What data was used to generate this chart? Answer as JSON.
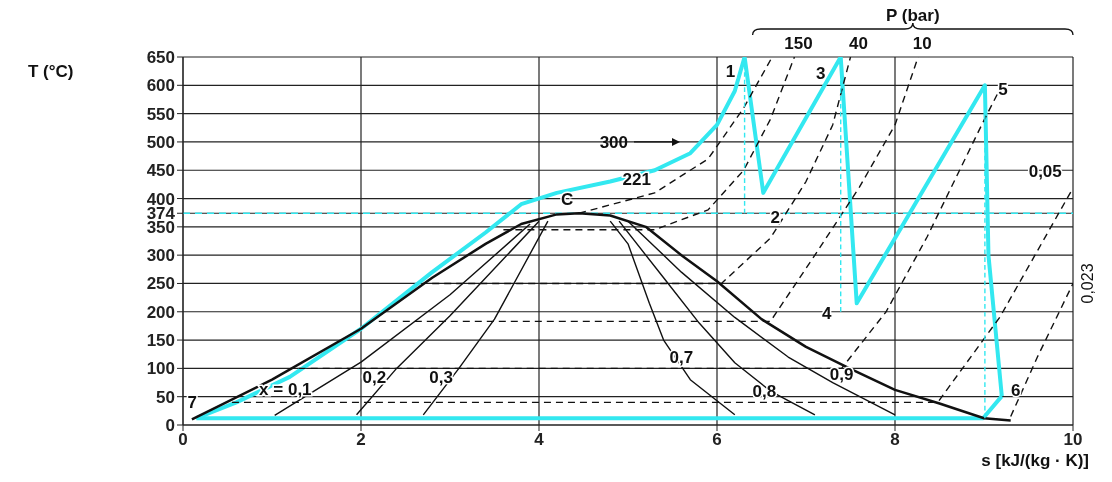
{
  "chart_data": {
    "type": "line",
    "xlabel": "s [kJ/(kg · K)]",
    "ylabel": "T (°C)",
    "xlim": [
      0,
      10
    ],
    "ylim": [
      0,
      650
    ],
    "xticks": [
      0,
      2,
      4,
      6,
      8,
      10
    ],
    "yticks": [
      0,
      50,
      100,
      150,
      200,
      250,
      300,
      350,
      374,
      400,
      450,
      500,
      550,
      600,
      650
    ],
    "grid": true,
    "marker": "none",
    "legend": false,
    "ref_lines": [
      {
        "axis": "y",
        "value": 374,
        "color": "#33e8f0",
        "line_style": "dashed"
      }
    ],
    "series": [
      {
        "color": "#33e8f0",
        "line_style": "solid",
        "x": [
          0.15,
          0.6,
          1.2,
          2.0,
          2.8,
          3.4,
          3.8,
          4.2,
          4.8,
          5.3,
          5.7,
          6.0,
          6.2,
          6.31,
          6.52,
          7.39,
          7.57,
          9.01,
          9.05,
          9.2
        ],
        "values": [
          12,
          40,
          85,
          170,
          270,
          340,
          390,
          410,
          430,
          450,
          480,
          530,
          590,
          650,
          410,
          650,
          215,
          600,
          300,
          51
        ]
      },
      {
        "color": "#33e8f0",
        "line_style": "solid",
        "x": [
          0.15,
          8.99,
          9.2
        ],
        "values": [
          12,
          12,
          51
        ]
      },
      {
        "color": "#111111",
        "line_style": "solid",
        "x": [
          0.1,
          1.0,
          2.0,
          2.8,
          3.4,
          3.8,
          4.2,
          4.45,
          4.8,
          5.2,
          5.6,
          6.0,
          6.5,
          7.0,
          7.5,
          8.0,
          8.5,
          9.0,
          9.3
        ],
        "values": [
          10,
          80,
          170,
          260,
          320,
          355,
          372,
          374,
          370,
          350,
          300,
          254,
          187,
          138,
          99,
          62,
          38,
          12,
          8
        ]
      },
      {
        "color": "#111111",
        "line_style": "solid",
        "x": [
          1.03,
          2.0,
          3.0,
          3.9
        ],
        "values": [
          17,
          111,
          230,
          355
        ]
      },
      {
        "color": "#111111",
        "line_style": "solid",
        "x": [
          1.95,
          2.4,
          3.0,
          4.0
        ],
        "values": [
          18,
          100,
          193,
          360
        ]
      },
      {
        "color": "#111111",
        "line_style": "solid",
        "x": [
          2.7,
          3.1,
          3.5,
          4.1
        ],
        "values": [
          18,
          100,
          187,
          360
        ]
      },
      {
        "color": "#111111",
        "line_style": "solid",
        "x": [
          4.8,
          5.0,
          5.24,
          5.4,
          5.7,
          6.2
        ],
        "values": [
          360,
          320,
          215,
          150,
          80,
          18
        ]
      },
      {
        "color": "#111111",
        "line_style": "solid",
        "x": [
          4.9,
          5.4,
          5.8,
          6.2,
          6.6,
          7.1
        ],
        "values": [
          360,
          260,
          180,
          110,
          60,
          18
        ]
      },
      {
        "color": "#111111",
        "line_style": "solid",
        "x": [
          5.0,
          5.6,
          6.2,
          6.8,
          7.3,
          8.0
        ],
        "values": [
          360,
          270,
          190,
          120,
          75,
          18
        ]
      },
      {
        "color": "#111111",
        "line_style": "dashed",
        "x": [
          4.45,
          5.3,
          5.9,
          6.3,
          6.62
        ],
        "values": [
          374,
          410,
          470,
          560,
          650
        ]
      },
      {
        "color": "#111111",
        "line_style": "dashed",
        "x": [
          3.6,
          5.3,
          5.9,
          6.3,
          6.6,
          6.87
        ],
        "values": [
          345,
          345,
          380,
          450,
          540,
          650
        ]
      },
      {
        "color": "#111111",
        "line_style": "dashed",
        "x": [
          2.8,
          6.05,
          6.6,
          7.0,
          7.3,
          7.5
        ],
        "values": [
          250,
          250,
          330,
          430,
          530,
          650
        ]
      },
      {
        "color": "#111111",
        "line_style": "dashed",
        "x": [
          2.2,
          6.6,
          7.1,
          7.6,
          8.0,
          8.26
        ],
        "values": [
          183,
          183,
          300,
          420,
          530,
          650
        ]
      },
      {
        "color": "#111111",
        "line_style": "dashed",
        "x": [
          1.3,
          7.4,
          7.9,
          8.36,
          8.98,
          9.2
        ],
        "values": [
          100,
          100,
          200,
          332,
          532,
          600
        ]
      },
      {
        "color": "#111111",
        "line_style": "dashed",
        "x": [
          0.55,
          8.48,
          9.18,
          9.98
        ],
        "values": [
          40,
          40,
          191,
          413
        ]
      },
      {
        "color": "#111111",
        "line_style": "dashed",
        "x": [
          9.3,
          9.6,
          10
        ],
        "values": [
          15,
          120,
          250
        ]
      },
      {
        "color": "#33e8f0",
        "line_style": "dashed",
        "x": [
          6.31,
          6.31
        ],
        "values": [
          650,
          374
        ]
      },
      {
        "color": "#33e8f0",
        "line_style": "dashed",
        "x": [
          7.39,
          7.39
        ],
        "values": [
          650,
          200
        ]
      },
      {
        "color": "#33e8f0",
        "line_style": "dashed",
        "x": [
          9.01,
          9.01
        ],
        "values": [
          600,
          12
        ]
      }
    ],
    "annotations": [
      "P (bar)",
      {
        "text": "1",
        "x": 6.31,
        "y": 650
      },
      {
        "text": "2",
        "x": 6.52,
        "y": 410
      },
      {
        "text": "3",
        "x": 7.39,
        "y": 650
      },
      {
        "text": "4",
        "x": 7.57,
        "y": 215
      },
      {
        "text": "5",
        "x": 9.01,
        "y": 600
      },
      {
        "text": "6",
        "x": 9.2,
        "y": 51
      },
      {
        "text": "7",
        "x": 0.15,
        "y": 12
      },
      {
        "text": "C",
        "x": 4.45,
        "y": 374
      },
      {
        "text": "x = 0,1",
        "x": 1.15,
        "y": 45
      },
      {
        "text": "0,2",
        "x": 2.15,
        "y": 65
      },
      {
        "text": "0,3",
        "x": 2.9,
        "y": 65
      },
      {
        "text": "0,7",
        "x": 5.6,
        "y": 100
      },
      {
        "text": "0,8",
        "x": 6.6,
        "y": 60
      },
      {
        "text": "0,9",
        "x": 7.4,
        "y": 70
      },
      "300",
      {
        "text": "221",
        "x": 5.3,
        "y": 410
      },
      {
        "text": "150",
        "x": 6.87,
        "y": 650
      },
      {
        "text": "40",
        "x": 7.5,
        "y": 650
      },
      {
        "text": "10",
        "x": 8.26,
        "y": 650
      },
      {
        "text": "0,05",
        "x": 9.98,
        "y": 413
      },
      {
        "text": "0,023",
        "x": 10,
        "y": 250
      }
    ]
  }
}
